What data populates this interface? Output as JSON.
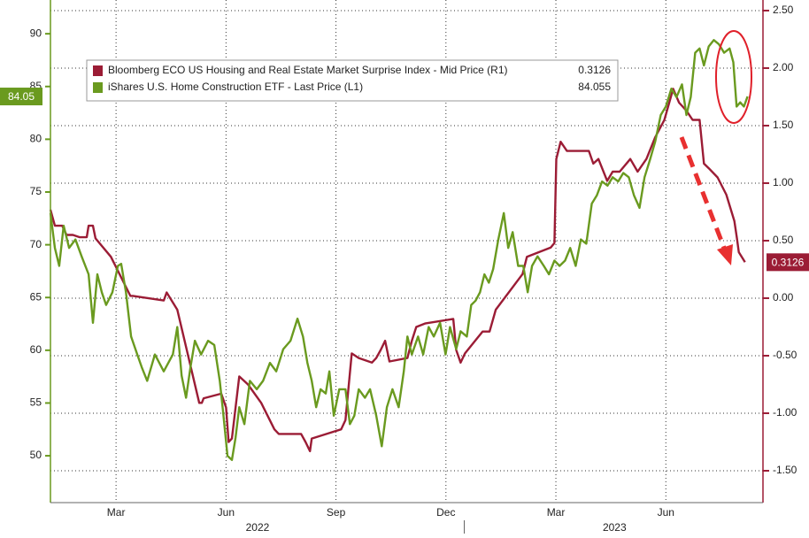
{
  "chart_data": {
    "type": "line",
    "xlim": [
      0.71,
      20.15
    ],
    "xticks": [
      {
        "value": 2.5,
        "label": "Mar"
      },
      {
        "value": 5.5,
        "label": "Jun"
      },
      {
        "value": 8.5,
        "label": "Sep"
      },
      {
        "value": 11.5,
        "label": "Dec"
      },
      {
        "value": 14.5,
        "label": "Mar"
      },
      {
        "value": 17.5,
        "label": "Jun"
      }
    ],
    "year_ticks": [
      {
        "value": 6.36,
        "label": "2022"
      },
      {
        "value": 16.1,
        "label": "2023"
      }
    ],
    "year_separators": [
      12
    ],
    "ylim": [
      45.56,
      93.2
    ],
    "yticks": [
      50,
      55,
      60,
      65,
      70,
      75,
      80,
      85,
      90
    ],
    "y2lim": [
      -1.777,
      2.592
    ],
    "y2ticks": [
      {
        "value": -1.5,
        "label": "-1.50"
      },
      {
        "value": -1,
        "label": "-1.00"
      },
      {
        "value": -0.5,
        "label": "-0.50"
      },
      {
        "value": 0,
        "label": "0.00"
      },
      {
        "value": 0.5,
        "label": "0.50"
      },
      {
        "value": 1,
        "label": "1.00"
      },
      {
        "value": 1.5,
        "label": "1.50"
      },
      {
        "value": 2,
        "label": "2.00"
      },
      {
        "value": 2.5,
        "label": "2.50"
      }
    ],
    "grid": "y2",
    "legend": "top-left",
    "series": [
      {
        "name": "Bloomberg ECO US Housing and Real Estate Market Surprise Index - Mid Price (R1)",
        "color": "#9b1c35",
        "axis": "y2",
        "end_label": "0.3126",
        "x": [
          0.71,
          0.83,
          1.03,
          1.15,
          1.32,
          1.51,
          1.7,
          1.75,
          1.87,
          1.94,
          2.36,
          2.89,
          2.96,
          3.8,
          3.88,
          4.17,
          4.77,
          4.84,
          4.89,
          5.37,
          5.5,
          5.57,
          5.66,
          5.86,
          6.1,
          6.46,
          6.82,
          6.94,
          7.55,
          7.67,
          7.79,
          7.84,
          8.64,
          8.76,
          8.93,
          9.12,
          9.48,
          9.6,
          9.72,
          9.84,
          9.96,
          10.45,
          10.57,
          10.69,
          10.93,
          11.7,
          11.78,
          11.9,
          12.02,
          12.5,
          12.69,
          12.86,
          13.59,
          13.71,
          14.36,
          14.46,
          14.51,
          14.63,
          14.8,
          15.4,
          15.52,
          15.66,
          15.9,
          16.05,
          16.24,
          16.53,
          16.73,
          16.97,
          17.21,
          17.46,
          17.7,
          17.86,
          18.06,
          18.23,
          18.42,
          18.54,
          18.67,
          18.91,
          19.15,
          19.37,
          19.44,
          19.49,
          19.66
        ],
        "values": [
          0.77,
          0.63,
          0.63,
          0.55,
          0.55,
          0.53,
          0.53,
          0.63,
          0.63,
          0.52,
          0.36,
          0.02,
          0.02,
          -0.02,
          0.05,
          -0.1,
          -0.91,
          -0.91,
          -0.87,
          -0.83,
          -0.95,
          -1.25,
          -1.22,
          -0.68,
          -0.75,
          -0.91,
          -1.14,
          -1.18,
          -1.18,
          -1.25,
          -1.33,
          -1.22,
          -1.14,
          -1.06,
          -0.48,
          -0.52,
          -0.56,
          -0.52,
          -0.45,
          -0.37,
          -0.55,
          -0.52,
          -0.37,
          -0.25,
          -0.22,
          -0.18,
          -0.45,
          -0.56,
          -0.48,
          -0.29,
          -0.29,
          -0.1,
          0.21,
          0.36,
          0.44,
          0.48,
          1.21,
          1.36,
          1.28,
          1.28,
          1.17,
          1.21,
          1.02,
          1.1,
          1.1,
          1.21,
          1.1,
          1.21,
          1.4,
          1.55,
          1.82,
          1.7,
          1.63,
          1.55,
          1.55,
          1.17,
          1.13,
          1.05,
          0.9,
          0.67,
          0.52,
          0.4,
          0.3126
        ]
      },
      {
        "name": "iShares U.S. Home Construction ETF - Last Price (L1)",
        "color": "#6a9a1f",
        "axis": "y",
        "end_label": "84.05",
        "x": [
          0.71,
          0.83,
          0.95,
          1.07,
          1.22,
          1.39,
          1.56,
          1.75,
          1.87,
          1.99,
          2.11,
          2.23,
          2.4,
          2.55,
          2.64,
          2.77,
          2.91,
          3.08,
          3.2,
          3.35,
          3.56,
          3.8,
          4.05,
          4.17,
          4.29,
          4.41,
          4.53,
          4.65,
          4.82,
          5.01,
          5.18,
          5.33,
          5.42,
          5.54,
          5.66,
          5.76,
          5.86,
          6.0,
          6.15,
          6.34,
          6.51,
          6.7,
          6.87,
          7.06,
          7.26,
          7.45,
          7.6,
          7.72,
          7.84,
          7.96,
          8.08,
          8.22,
          8.32,
          8.44,
          8.59,
          8.76,
          8.88,
          9.0,
          9.12,
          9.29,
          9.43,
          9.6,
          9.75,
          9.89,
          10.04,
          10.21,
          10.35,
          10.45,
          10.57,
          10.74,
          10.88,
          11.03,
          11.17,
          11.34,
          11.49,
          11.61,
          11.78,
          11.9,
          12.07,
          12.19,
          12.31,
          12.43,
          12.55,
          12.67,
          12.79,
          12.93,
          13.08,
          13.2,
          13.32,
          13.47,
          13.61,
          13.73,
          13.85,
          14.0,
          14.17,
          14.31,
          14.46,
          14.6,
          14.75,
          14.89,
          15.04,
          15.18,
          15.33,
          15.48,
          15.62,
          15.76,
          15.91,
          16.05,
          16.2,
          16.34,
          16.49,
          16.63,
          16.78,
          16.92,
          17.07,
          17.21,
          17.36,
          17.5,
          17.65,
          17.79,
          17.94,
          18.06,
          18.18,
          18.3,
          18.42,
          18.54,
          18.67,
          18.81,
          18.95,
          19.09,
          19.24,
          19.34,
          19.43,
          19.53,
          19.63,
          19.73
        ],
        "values": [
          73,
          69.7,
          68,
          71.8,
          69.7,
          70.5,
          68.9,
          67.2,
          62.6,
          67.2,
          65.5,
          64.3,
          65.5,
          68,
          68.2,
          65.5,
          61.3,
          59.6,
          58.4,
          57.1,
          59.6,
          58,
          59.6,
          62.2,
          57.6,
          55.5,
          58.4,
          60.9,
          59.6,
          60.9,
          60.5,
          57.1,
          54.2,
          50,
          49.6,
          51.7,
          54.6,
          53,
          57.1,
          56.3,
          57.1,
          58.8,
          58,
          60.1,
          60.9,
          63,
          61.3,
          58.8,
          57.1,
          54.6,
          56.3,
          55.9,
          58,
          53.8,
          56.3,
          56.3,
          53,
          53.8,
          56.3,
          55.5,
          56.3,
          53.8,
          50.9,
          54.6,
          56.3,
          54.6,
          58,
          61.3,
          59.6,
          61.3,
          59.6,
          62.2,
          61.3,
          62.6,
          59.6,
          62.2,
          60.1,
          61.8,
          61.3,
          64.3,
          64.7,
          65.5,
          67.2,
          66.4,
          67.7,
          70.5,
          73,
          69.7,
          71.2,
          68,
          68,
          65.5,
          68,
          68.9,
          68,
          67.2,
          68.5,
          68,
          68.5,
          69.7,
          68,
          70.5,
          70.1,
          73.9,
          74.7,
          76,
          75.6,
          76.4,
          76,
          76.8,
          76.4,
          74.7,
          73.5,
          76.4,
          78.1,
          79.8,
          82.3,
          83.1,
          84.8,
          84,
          85.2,
          82.3,
          84,
          88.2,
          88.6,
          87,
          88.8,
          89.4,
          89,
          88.2,
          88.6,
          87.3,
          83.1,
          83.5,
          83.1,
          84.055
        ]
      }
    ]
  }
}
